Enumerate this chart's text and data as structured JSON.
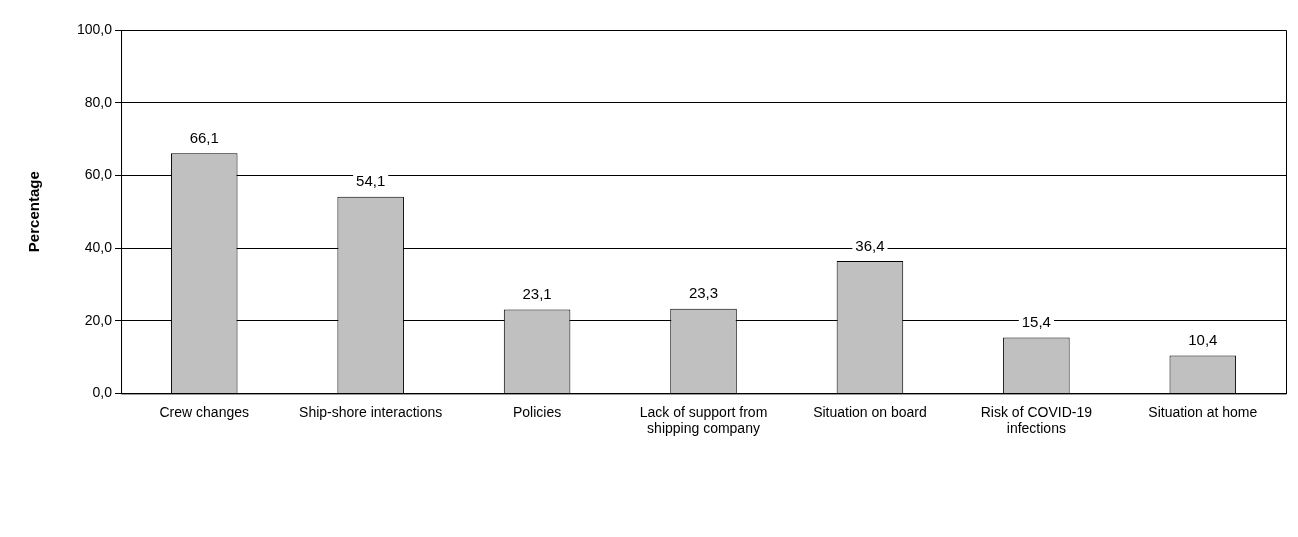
{
  "chart_data": {
    "type": "bar",
    "ylabel": "Percentage",
    "categories": [
      "Crew changes",
      "Ship-shore interactions",
      "Policies",
      "Lack of support from shipping company",
      "Situation on board",
      "Risk of COVID-19 infections",
      "Situation at home"
    ],
    "values": [
      66.1,
      54.1,
      23.1,
      23.3,
      36.4,
      15.4,
      10.4
    ],
    "value_labels": [
      "66,1",
      "54,1",
      "23,1",
      "23,3",
      "36,4",
      "15,4",
      "10,4"
    ],
    "color": "#c0c0c0",
    "ylim": [
      0,
      100
    ],
    "yticks": [
      {
        "value": 0,
        "label": "0,0"
      },
      {
        "value": 20,
        "label": "20,0"
      },
      {
        "value": 40,
        "label": "40,0"
      },
      {
        "value": 60,
        "label": "60,0"
      },
      {
        "value": 80,
        "label": "80,0"
      },
      {
        "value": 100,
        "label": "100,0"
      }
    ],
    "grid": "y",
    "legend": false
  }
}
